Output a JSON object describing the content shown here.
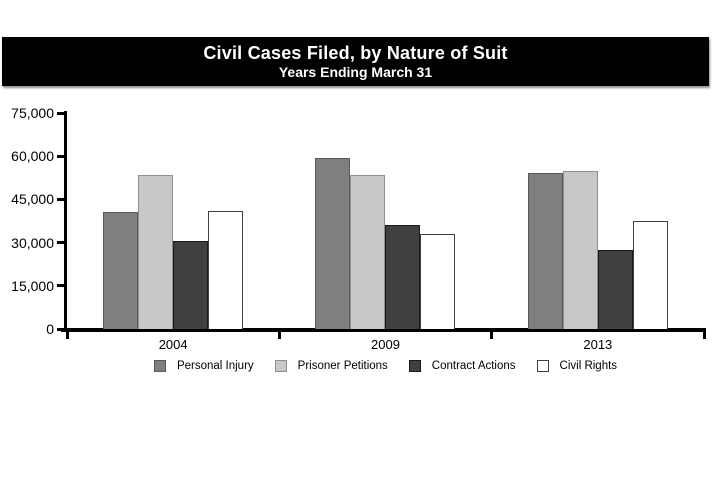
{
  "chart_data": {
    "type": "bar",
    "title": "Civil Cases Filed, by Nature of Suit",
    "subtitle": "Years Ending March 31",
    "categories": [
      "2004",
      "2009",
      "2013"
    ],
    "series": [
      {
        "name": "Personal Injury",
        "fill": "#7f7f7f",
        "border": "#595959",
        "values": [
          40500,
          59500,
          54000
        ]
      },
      {
        "name": "Prisoner Petitions",
        "fill": "#c8c8c8",
        "border": "#8f8f8f",
        "values": [
          53500,
          53500,
          55000
        ]
      },
      {
        "name": "Contract Actions",
        "fill": "#404040",
        "border": "#1a1a1a",
        "values": [
          30500,
          36000,
          27500
        ]
      },
      {
        "name": "Civil Rights",
        "fill": "#ffffff",
        "border": "#404040",
        "values": [
          41000,
          33000,
          37500
        ]
      }
    ],
    "y_axis": {
      "min": 0,
      "max": 75000,
      "tick_step": 15000,
      "tick_labels": [
        "0",
        "15,000",
        "30,000",
        "45,000",
        "60,000",
        "75,000"
      ]
    },
    "grid": false,
    "legend_position": "bottom",
    "axis_color": "#000000",
    "banner_background": "#000000",
    "banner_text_color": "#ffffff"
  }
}
